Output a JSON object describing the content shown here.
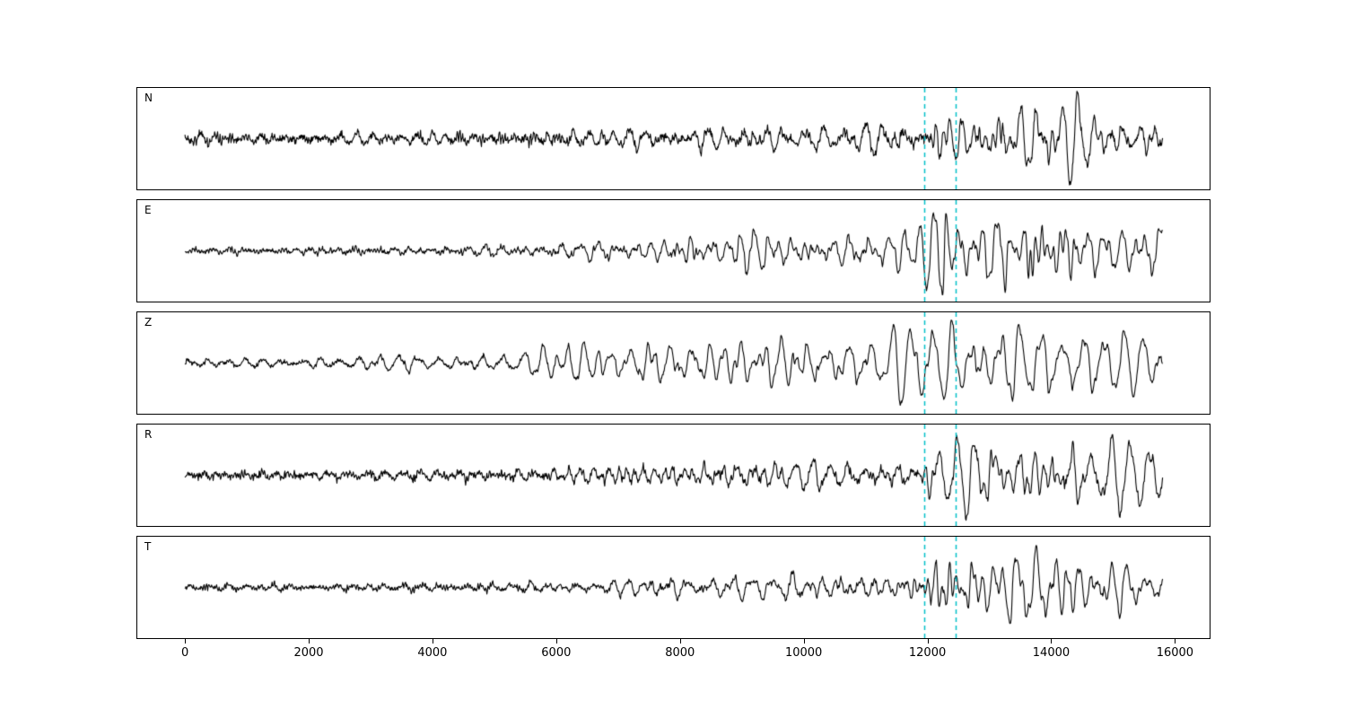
{
  "figure": {
    "background": "#ffffff",
    "axis_color": "#000000"
  },
  "chart_data": {
    "type": "line",
    "kind": "seismogram-multipanel",
    "title": "",
    "xlabel": "",
    "ylabel": "",
    "xlim": [
      -770,
      16560
    ],
    "trace_x_range": [
      0,
      15800
    ],
    "x_ticks": [
      0,
      2000,
      4000,
      6000,
      8000,
      10000,
      12000,
      14000,
      16000
    ],
    "x_tick_labels": [
      "0",
      "2000",
      "4000",
      "6000",
      "8000",
      "10000",
      "12000",
      "14000",
      "16000"
    ],
    "grid": false,
    "legend": "none",
    "trace_color": "#000000",
    "markers": {
      "style": "dashed-vertical",
      "color": "#00bfc8",
      "values": [
        11950,
        12450
      ]
    },
    "panels": [
      {
        "label": "N",
        "seed": 11,
        "peak_amplitude": 0.97,
        "envelope": [
          [
            0,
            0.06
          ],
          [
            3000,
            0.06
          ],
          [
            5500,
            0.07
          ],
          [
            6200,
            0.13
          ],
          [
            8000,
            0.15
          ],
          [
            9500,
            0.18
          ],
          [
            11000,
            0.16
          ],
          [
            11900,
            0.15
          ],
          [
            12050,
            0.5
          ],
          [
            12300,
            0.45
          ],
          [
            12500,
            0.6
          ],
          [
            12800,
            0.4
          ],
          [
            13050,
            1.0
          ],
          [
            13250,
            0.35
          ],
          [
            13500,
            0.5
          ],
          [
            13800,
            0.45
          ],
          [
            14200,
            0.4
          ],
          [
            14800,
            0.3
          ],
          [
            15400,
            0.28
          ],
          [
            15800,
            0.25
          ]
        ]
      },
      {
        "label": "E",
        "seed": 22,
        "peak_amplitude": 0.9,
        "envelope": [
          [
            0,
            0.05
          ],
          [
            4000,
            0.06
          ],
          [
            5500,
            0.08
          ],
          [
            6500,
            0.18
          ],
          [
            7500,
            0.22
          ],
          [
            8200,
            0.3
          ],
          [
            9000,
            0.32
          ],
          [
            10000,
            0.3
          ],
          [
            11000,
            0.35
          ],
          [
            11800,
            0.3
          ],
          [
            12000,
            0.75
          ],
          [
            12400,
            0.8
          ],
          [
            12700,
            0.6
          ],
          [
            13000,
            0.65
          ],
          [
            13400,
            0.8
          ],
          [
            13700,
            1.0
          ],
          [
            14000,
            0.7
          ],
          [
            14300,
            0.8
          ],
          [
            14700,
            0.5
          ],
          [
            15200,
            0.45
          ],
          [
            15600,
            0.5
          ],
          [
            15800,
            0.4
          ]
        ]
      },
      {
        "label": "Z",
        "seed": 33,
        "peak_amplitude": 0.88,
        "envelope": [
          [
            0,
            0.1
          ],
          [
            2500,
            0.12
          ],
          [
            3200,
            0.22
          ],
          [
            4000,
            0.18
          ],
          [
            5000,
            0.2
          ],
          [
            5800,
            0.35
          ],
          [
            6500,
            0.45
          ],
          [
            7500,
            0.55
          ],
          [
            8200,
            0.7
          ],
          [
            9000,
            0.65
          ],
          [
            9800,
            0.7
          ],
          [
            10800,
            0.65
          ],
          [
            11500,
            0.7
          ],
          [
            12000,
            0.8
          ],
          [
            12500,
            0.85
          ],
          [
            13000,
            0.9
          ],
          [
            13500,
            1.0
          ],
          [
            14000,
            0.8
          ],
          [
            14500,
            0.75
          ],
          [
            15000,
            0.7
          ],
          [
            15500,
            0.85
          ],
          [
            15800,
            0.6
          ]
        ]
      },
      {
        "label": "R",
        "seed": 44,
        "peak_amplitude": 0.92,
        "envelope": [
          [
            0,
            0.05
          ],
          [
            3500,
            0.06
          ],
          [
            5800,
            0.07
          ],
          [
            6200,
            0.15
          ],
          [
            7000,
            0.17
          ],
          [
            8000,
            0.2
          ],
          [
            9000,
            0.22
          ],
          [
            10000,
            0.2
          ],
          [
            11000,
            0.18
          ],
          [
            11900,
            0.16
          ],
          [
            12050,
            0.5
          ],
          [
            12300,
            0.4
          ],
          [
            12600,
            0.5
          ],
          [
            12900,
            0.45
          ],
          [
            13100,
            1.0
          ],
          [
            13300,
            0.4
          ],
          [
            13700,
            0.55
          ],
          [
            14100,
            0.45
          ],
          [
            14600,
            0.35
          ],
          [
            15200,
            0.28
          ],
          [
            15800,
            0.25
          ]
        ]
      },
      {
        "label": "T",
        "seed": 55,
        "peak_amplitude": 0.86,
        "envelope": [
          [
            0,
            0.05
          ],
          [
            4000,
            0.06
          ],
          [
            6000,
            0.1
          ],
          [
            6800,
            0.15
          ],
          [
            7800,
            0.18
          ],
          [
            8800,
            0.22
          ],
          [
            9800,
            0.25
          ],
          [
            10800,
            0.28
          ],
          [
            11500,
            0.3
          ],
          [
            11900,
            0.35
          ],
          [
            12050,
            0.8
          ],
          [
            12350,
            0.9
          ],
          [
            12600,
            0.7
          ],
          [
            12900,
            0.8
          ],
          [
            13100,
            1.0
          ],
          [
            13500,
            0.75
          ],
          [
            13900,
            0.8
          ],
          [
            14300,
            0.6
          ],
          [
            14800,
            0.5
          ],
          [
            15300,
            0.45
          ],
          [
            15800,
            0.4
          ]
        ]
      }
    ]
  }
}
